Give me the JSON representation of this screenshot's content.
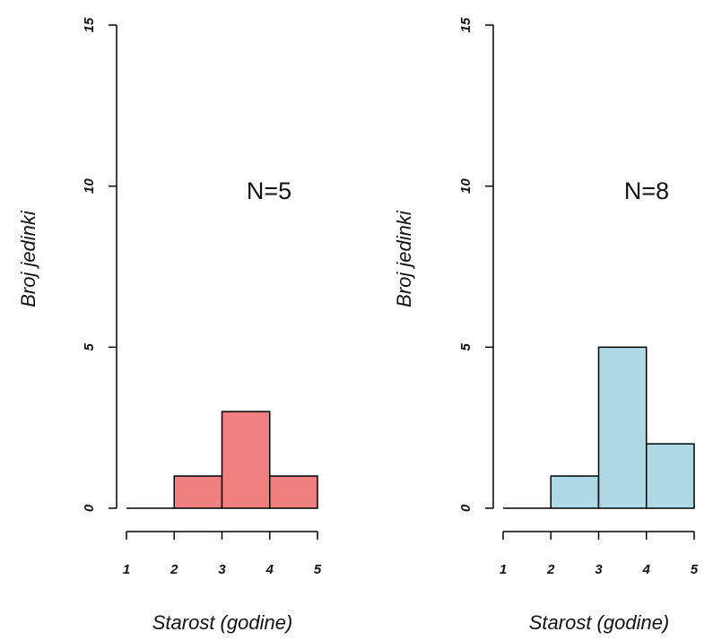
{
  "chart_data": [
    {
      "type": "bar",
      "histogram": true,
      "bin_edges": [
        1,
        2,
        3,
        4,
        5
      ],
      "values": [
        0,
        1,
        3,
        1
      ],
      "ylabel": "Broj jedinki",
      "xlabel": "Starost (godine)",
      "annotation": "N=5",
      "xticks": [
        "1",
        "2",
        "3",
        "4",
        "5"
      ],
      "yticks": [
        "0",
        "5",
        "10",
        "15"
      ],
      "xlim": [
        1,
        5
      ],
      "ylim": [
        0,
        15
      ],
      "color": "#f08080",
      "grid": false
    },
    {
      "type": "bar",
      "histogram": true,
      "bin_edges": [
        1,
        2,
        3,
        4,
        5
      ],
      "values": [
        0,
        1,
        5,
        2
      ],
      "ylabel": "Broj jedinki",
      "xlabel": "Starost (godine)",
      "annotation": "N=8",
      "xticks": [
        "1",
        "2",
        "3",
        "4",
        "5"
      ],
      "yticks": [
        "0",
        "5",
        "10",
        "15"
      ],
      "xlim": [
        1,
        5
      ],
      "ylim": [
        0,
        15
      ],
      "color": "#add8e6",
      "grid": false
    }
  ]
}
